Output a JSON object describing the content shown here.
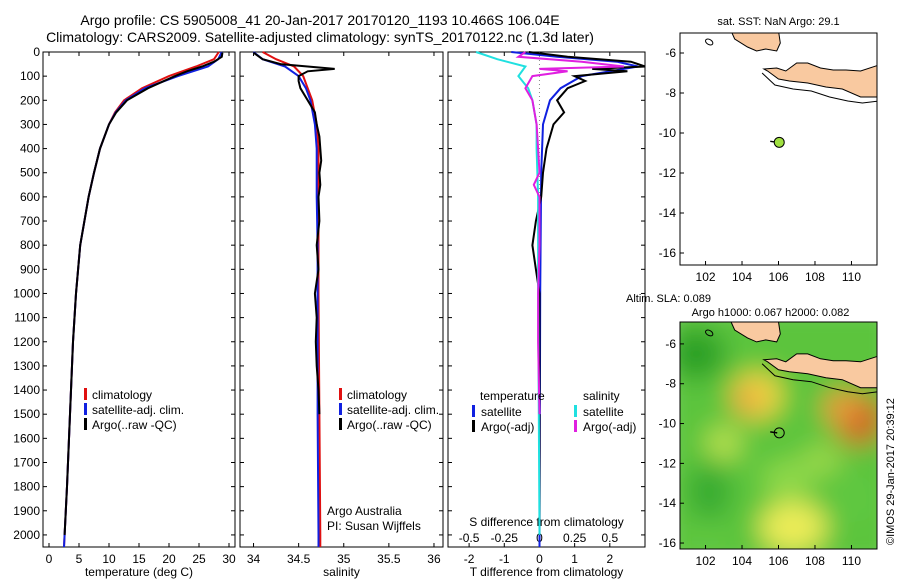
{
  "header": {
    "title_line1": "Argo profile: CS 5905008_41 20-Jan-2017 20170120_1193 10.466S 106.04E",
    "title_line2": "Climatology: CARS2009. Satellite-adjusted climatology: synTS_20170122.nc (1.3d later)"
  },
  "colors": {
    "climatology": "#e01010",
    "satellite": "#1020e0",
    "argo": "#000000",
    "satellite_salinity": "#20e0e0",
    "argo_salinity": "#e020e0",
    "land": "#f9c9a0",
    "marker": "#a0e040"
  },
  "chart_data": [
    {
      "id": "temperature",
      "type": "line",
      "xlabel": "temperature (deg C)",
      "ylabel": "",
      "xlim": [
        -1,
        31
      ],
      "ylim": [
        2050,
        0
      ],
      "xticks": [
        0,
        5,
        10,
        15,
        20,
        25,
        30
      ],
      "yticks": [
        0,
        100,
        200,
        300,
        400,
        500,
        600,
        700,
        800,
        900,
        1000,
        1100,
        1200,
        1300,
        1400,
        1500,
        1600,
        1700,
        1800,
        1900,
        2000
      ],
      "legend": [
        "climatology",
        "satellite-adj. clim.",
        "Argo(..raw -QC)"
      ],
      "series": [
        {
          "name": "climatology",
          "color": "#e01010",
          "depth": [
            0,
            30,
            60,
            100,
            150,
            200,
            250,
            300,
            400,
            500,
            600,
            800,
            1000,
            1200,
            1500,
            1800,
            2000,
            2050
          ],
          "values": [
            28.3,
            27.5,
            24.5,
            20,
            15.5,
            12.5,
            11,
            10,
            8.5,
            7.5,
            6.6,
            5.2,
            4.5,
            4,
            3.5,
            3,
            2.6,
            2.5
          ]
        },
        {
          "name": "satellite-adj. clim.",
          "color": "#1020e0",
          "depth": [
            0,
            30,
            60,
            100,
            150,
            200,
            250,
            300,
            400,
            500,
            600,
            800,
            1000,
            1200,
            1500,
            1800,
            2000,
            2050
          ],
          "values": [
            28.8,
            28.2,
            26.5,
            21.5,
            16,
            12.8,
            11.1,
            10,
            8.5,
            7.5,
            6.6,
            5.2,
            4.5,
            4,
            3.5,
            3,
            2.6,
            2.5
          ]
        },
        {
          "name": "Argo(..raw -QC)",
          "color": "#000000",
          "depth": [
            3,
            20,
            40,
            60,
            80,
            100,
            150,
            200,
            250,
            300,
            400,
            500,
            600,
            800,
            1000,
            1200,
            1500,
            1800,
            2000
          ],
          "values": [
            28.9,
            28.8,
            27.5,
            25.5,
            23,
            21,
            16.5,
            13,
            11.2,
            10,
            8.5,
            7.5,
            6.6,
            5.2,
            4.5,
            4,
            3.5,
            3,
            2.6
          ]
        }
      ]
    },
    {
      "id": "salinity",
      "type": "line",
      "xlabel": "salinity",
      "ylabel": "",
      "xlim": [
        33.85,
        36.1
      ],
      "ylim": [
        2050,
        0
      ],
      "xticks": [
        34,
        34.5,
        35,
        35.5,
        36
      ],
      "legend": [
        "climatology",
        "satellite-adj. clim.",
        "Argo(..raw -QC)"
      ],
      "annotations": [
        "Argo Australia",
        "PI: Susan Wijffels"
      ],
      "series": [
        {
          "name": "climatology",
          "color": "#e01010",
          "depth": [
            0,
            30,
            60,
            100,
            150,
            200,
            300,
            400,
            600,
            800,
            1000,
            1500,
            2000,
            2050
          ],
          "values": [
            34.1,
            34.25,
            34.45,
            34.55,
            34.6,
            34.65,
            34.7,
            34.72,
            34.72,
            34.72,
            34.72,
            34.73,
            34.74,
            34.74
          ]
        },
        {
          "name": "satellite-adj. clim.",
          "color": "#1020e0",
          "depth": [
            0,
            30,
            60,
            100,
            150,
            200,
            300,
            400,
            600,
            800,
            1000,
            1500,
            2000,
            2050
          ],
          "values": [
            34.0,
            34.1,
            34.35,
            34.5,
            34.58,
            34.63,
            34.68,
            34.7,
            34.7,
            34.71,
            34.71,
            34.71,
            34.72,
            34.72
          ]
        },
        {
          "name": "Argo(..raw -QC)",
          "color": "#000000",
          "depth": [
            3,
            30,
            50,
            70,
            80,
            100,
            120,
            150,
            200,
            250,
            300,
            350,
            400,
            450,
            500,
            550,
            600,
            700,
            800,
            900,
            1000,
            1100,
            1200,
            1300,
            1400,
            1500
          ],
          "values": [
            34.0,
            34.1,
            34.3,
            34.9,
            34.6,
            34.5,
            34.5,
            34.52,
            34.6,
            34.68,
            34.7,
            34.73,
            34.74,
            34.75,
            34.73,
            34.74,
            34.72,
            34.73,
            34.7,
            34.72,
            34.68,
            34.7,
            34.69,
            34.7,
            34.72,
            34.73
          ]
        }
      ]
    },
    {
      "id": "difference",
      "type": "line",
      "xlabel": "T difference from climatology",
      "x2label": "S difference from climatology",
      "xlim": [
        -2.6,
        3.0
      ],
      "ylim": [
        2050,
        0
      ],
      "xticks": [
        -2,
        -1,
        0,
        1,
        2
      ],
      "x2ticks": [
        -0.5,
        -0.25,
        0,
        0.25,
        0.5
      ],
      "legend": [
        "temperature satellite",
        "temperature Argo(-adj)",
        "salinity satellite",
        "salinity Argo(-adj)"
      ],
      "series": [
        {
          "name": "temperature satellite",
          "color": "#1020e0",
          "depth": [
            0,
            20,
            40,
            60,
            80,
            100,
            150,
            200,
            300,
            500,
            1000,
            2050
          ],
          "values": [
            -0.8,
            0.5,
            2.2,
            2.8,
            2.0,
            1.2,
            0.6,
            0.3,
            0.1,
            0.05,
            0.02,
            0.0
          ]
        },
        {
          "name": "temperature Argo(-adj)",
          "color": "#000000",
          "depth": [
            0,
            20,
            40,
            60,
            70,
            80,
            100,
            120,
            150,
            200,
            250,
            300,
            400,
            500,
            600,
            700,
            800,
            900,
            1000,
            1500,
            2000
          ],
          "values": [
            -0.3,
            0.8,
            2.6,
            3.0,
            1.5,
            2.5,
            1.0,
            1.3,
            0.8,
            0.5,
            0.7,
            0.4,
            0.2,
            0.1,
            0.05,
            -0.1,
            -0.2,
            -0.1,
            0.0,
            0.0,
            0.0
          ]
        },
        {
          "name": "salinity satellite",
          "color": "#20e0e0",
          "depth": [
            0,
            30,
            60,
            100,
            150,
            200,
            300,
            400,
            600,
            1000,
            2000
          ],
          "values": [
            -0.45,
            -0.3,
            -0.1,
            -0.15,
            -0.08,
            -0.05,
            -0.02,
            -0.02,
            -0.01,
            -0.01,
            0.0
          ]
        },
        {
          "name": "salinity Argo(-adj)",
          "color": "#e020e0",
          "depth": [
            0,
            20,
            40,
            60,
            70,
            80,
            100,
            150,
            200,
            300,
            400,
            500,
            550,
            600,
            800,
            1000,
            1200,
            1500
          ],
          "values": [
            -0.1,
            -0.15,
            0.3,
            0.6,
            0.0,
            0.2,
            -0.05,
            -0.1,
            -0.05,
            -0.02,
            -0.01,
            0.0,
            -0.04,
            0.0,
            0.0,
            -0.01,
            -0.01,
            0.0
          ]
        }
      ]
    },
    {
      "id": "map_sst",
      "type": "map",
      "title": "sat. SST: NaN Argo: 29.1",
      "xlim": [
        100.6,
        111.4
      ],
      "ylim": [
        -16.6,
        -5.0
      ],
      "xticks": [
        102,
        104,
        106,
        108,
        110
      ],
      "yticks": [
        -6,
        -8,
        -10,
        -12,
        -14,
        -16
      ],
      "marker": {
        "lon": 106.04,
        "lat": -10.466
      }
    },
    {
      "id": "map_sla",
      "type": "map",
      "title": "Altim. SLA: 0.089",
      "subtitle": "Argo h1000: 0.067 h2000: 0.082",
      "xlim": [
        100.6,
        111.4
      ],
      "ylim": [
        -16.3,
        -4.9
      ],
      "xticks": [
        102,
        104,
        106,
        108,
        110
      ],
      "yticks": [
        -6,
        -8,
        -10,
        -12,
        -14,
        -16
      ],
      "marker": {
        "lon": 106.04,
        "lat": -10.466
      }
    }
  ],
  "footer": {
    "credit": "©IMOS 29-Jan-2017 20:39:12"
  }
}
